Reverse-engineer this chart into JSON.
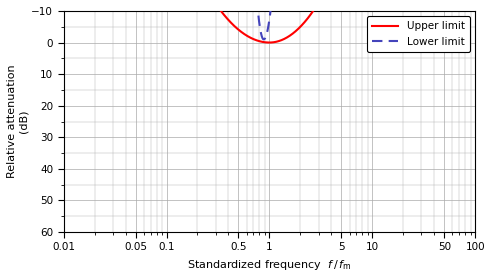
{
  "ylabel_line1": "Relative attenuation",
  "ylabel_line2": "(dB)",
  "xlim": [
    0.01,
    100
  ],
  "ylim": [
    60,
    -10
  ],
  "upper_color": "#ff0000",
  "lower_color": "#4444bb",
  "background_color": "#ffffff",
  "grid_color": "#aaaaaa",
  "xticks": [
    0.01,
    0.05,
    0.1,
    0.5,
    1,
    5,
    10,
    50,
    100
  ],
  "xtick_labels": [
    "0.01",
    "0.05",
    "0.1",
    "0.5",
    "1",
    "5",
    "10",
    "50",
    "100"
  ],
  "yticks": [
    -10,
    0,
    10,
    20,
    30,
    40,
    50,
    60
  ],
  "legend_upper": "Upper limit",
  "legend_lower": "Lower limit"
}
